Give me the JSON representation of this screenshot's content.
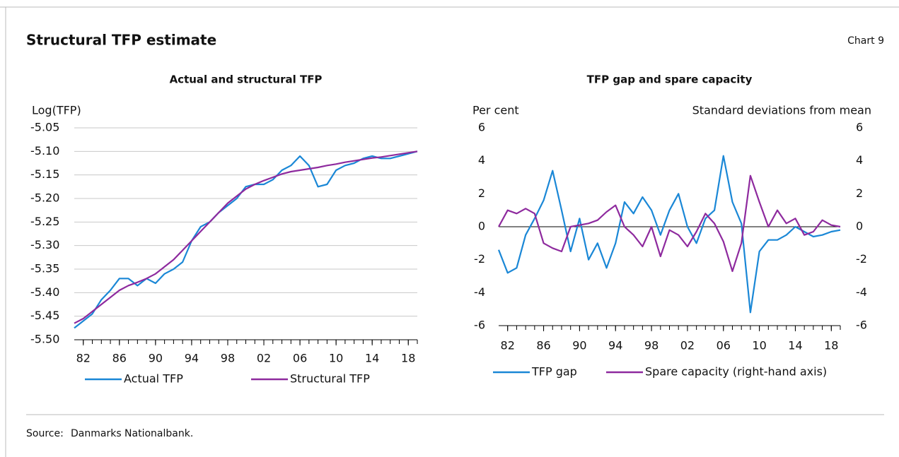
{
  "header": {
    "title": "Structural TFP estimate",
    "chart_label": "Chart 9"
  },
  "chart_data": [
    {
      "type": "line",
      "title": "Actual and structural TFP",
      "ylabel": "Log(TFP)",
      "x": [
        1981,
        1982,
        1983,
        1984,
        1985,
        1986,
        1987,
        1988,
        1989,
        1990,
        1991,
        1992,
        1993,
        1994,
        1995,
        1996,
        1997,
        1998,
        1999,
        2000,
        2001,
        2002,
        2003,
        2004,
        2005,
        2006,
        2007,
        2008,
        2009,
        2010,
        2011,
        2012,
        2013,
        2014,
        2015,
        2016,
        2017,
        2018,
        2019
      ],
      "series": [
        {
          "name": "Actual TFP",
          "color": "#1a87d6",
          "values": [
            -5.475,
            -5.46,
            -5.445,
            -5.415,
            -5.395,
            -5.37,
            -5.37,
            -5.385,
            -5.37,
            -5.38,
            -5.36,
            -5.35,
            -5.335,
            -5.29,
            -5.26,
            -5.25,
            -5.23,
            -5.215,
            -5.2,
            -5.175,
            -5.17,
            -5.17,
            -5.16,
            -5.14,
            -5.13,
            -5.11,
            -5.13,
            -5.175,
            -5.17,
            -5.14,
            -5.13,
            -5.125,
            -5.115,
            -5.11,
            -5.115,
            -5.115,
            -5.11,
            -5.105,
            -5.1
          ]
        },
        {
          "name": "Structural TFP",
          "color": "#8e2a9e",
          "values": [
            -5.465,
            -5.455,
            -5.44,
            -5.425,
            -5.41,
            -5.395,
            -5.385,
            -5.378,
            -5.37,
            -5.36,
            -5.345,
            -5.33,
            -5.31,
            -5.29,
            -5.27,
            -5.25,
            -5.23,
            -5.21,
            -5.195,
            -5.18,
            -5.17,
            -5.162,
            -5.155,
            -5.148,
            -5.143,
            -5.14,
            -5.137,
            -5.134,
            -5.13,
            -5.127,
            -5.123,
            -5.12,
            -5.117,
            -5.114,
            -5.112,
            -5.109,
            -5.106,
            -5.103,
            -5.1
          ]
        }
      ],
      "xlim": [
        1981,
        2019
      ],
      "xticks": [
        {
          "value": 1982,
          "label": "82"
        },
        {
          "value": 1986,
          "label": "86"
        },
        {
          "value": 1990,
          "label": "90"
        },
        {
          "value": 1994,
          "label": "94"
        },
        {
          "value": 1998,
          "label": "98"
        },
        {
          "value": 2002,
          "label": "02"
        },
        {
          "value": 2006,
          "label": "06"
        },
        {
          "value": 2010,
          "label": "10"
        },
        {
          "value": 2014,
          "label": "14"
        },
        {
          "value": 2018,
          "label": "18"
        }
      ],
      "xminorticks": [
        1982,
        1983,
        1984,
        1985,
        1986,
        1987,
        1988,
        1989,
        1990,
        1991,
        1992,
        1993,
        1994,
        1995,
        1996,
        1997,
        1998,
        1999,
        2000,
        2001,
        2002,
        2003,
        2004,
        2005,
        2006,
        2007,
        2008,
        2009,
        2010,
        2011,
        2012,
        2013,
        2014,
        2015,
        2016,
        2017,
        2018,
        2019
      ],
      "ylim": [
        -5.5,
        -5.05
      ],
      "yticks": [
        -5.05,
        {
          "value": -5.1,
          "label": "-5.10"
        },
        -5.15,
        {
          "value": -5.2,
          "label": "-5.20"
        },
        -5.25,
        {
          "value": -5.3,
          "label": "-5.30"
        },
        -5.35,
        {
          "value": -5.4,
          "label": "-5.40"
        },
        -5.45,
        {
          "value": -5.5,
          "label": "-5.50"
        }
      ],
      "grid": true,
      "legend": "bottom"
    },
    {
      "type": "line",
      "title": "TFP gap and spare capacity",
      "ylabel": "Per cent",
      "y2label": "Standard deviations from mean",
      "x": [
        1981,
        1982,
        1983,
        1984,
        1985,
        1986,
        1987,
        1988,
        1989,
        1990,
        1991,
        1992,
        1993,
        1994,
        1995,
        1996,
        1997,
        1998,
        1999,
        2000,
        2001,
        2002,
        2003,
        2004,
        2005,
        2006,
        2007,
        2008,
        2009,
        2010,
        2011,
        2012,
        2013,
        2014,
        2015,
        2016,
        2017,
        2018,
        2019
      ],
      "series": [
        {
          "name": "TFP gap",
          "color": "#1a87d6",
          "values": [
            -1.4,
            -2.8,
            -2.5,
            -0.5,
            0.5,
            1.6,
            3.4,
            1.0,
            -1.5,
            0.5,
            -2.0,
            -1.0,
            -2.5,
            -1.0,
            1.5,
            0.8,
            1.8,
            1.0,
            -0.5,
            1.0,
            2.0,
            0.0,
            -1.0,
            0.5,
            1.0,
            4.3,
            1.5,
            0.2,
            -5.2,
            -1.5,
            -0.8,
            -0.8,
            -0.5,
            0.0,
            -0.3,
            -0.6,
            -0.5,
            -0.3,
            -0.2
          ]
        },
        {
          "name": "Spare capacity (right-hand axis)",
          "color": "#8e2a9e",
          "axis": "y2",
          "values": [
            0,
            1.0,
            0.8,
            1.1,
            0.8,
            -1.0,
            -1.3,
            -1.5,
            0.0,
            0.1,
            0.2,
            0.4,
            0.9,
            1.3,
            0.0,
            -0.5,
            -1.2,
            0.0,
            -1.8,
            -0.2,
            -0.5,
            -1.2,
            -0.3,
            0.8,
            0.2,
            -0.9,
            -2.7,
            -1.0,
            3.1,
            1.5,
            0.0,
            1.0,
            0.2,
            0.5,
            -0.5,
            -0.3,
            0.4,
            0.1,
            0.0
          ]
        }
      ],
      "xlim": [
        1981,
        2019
      ],
      "xticks": [
        {
          "value": 1982,
          "label": "82"
        },
        {
          "value": 1986,
          "label": "86"
        },
        {
          "value": 1990,
          "label": "90"
        },
        {
          "value": 1994,
          "label": "94"
        },
        {
          "value": 1998,
          "label": "98"
        },
        {
          "value": 2002,
          "label": "02"
        },
        {
          "value": 2006,
          "label": "06"
        },
        {
          "value": 2010,
          "label": "10"
        },
        {
          "value": 2014,
          "label": "14"
        },
        {
          "value": 2018,
          "label": "18"
        }
      ],
      "xminorticks": [
        1982,
        1983,
        1984,
        1985,
        1986,
        1987,
        1988,
        1989,
        1990,
        1991,
        1992,
        1993,
        1994,
        1995,
        1996,
        1997,
        1998,
        1999,
        2000,
        2001,
        2002,
        2003,
        2004,
        2005,
        2006,
        2007,
        2008,
        2009,
        2010,
        2011,
        2012,
        2013,
        2014,
        2015,
        2016,
        2017,
        2018,
        2019
      ],
      "ylim": [
        -6,
        6
      ],
      "yticks": [
        6,
        4,
        2,
        0,
        -2,
        -4,
        -6
      ],
      "y2lim": [
        -6,
        6
      ],
      "y2ticks": [
        6,
        4,
        2,
        0,
        -2,
        -4,
        -6
      ],
      "grid": false,
      "legend": "bottom"
    }
  ],
  "footer": {
    "source_label": "Source:",
    "source": "Danmarks Nationalbank."
  }
}
